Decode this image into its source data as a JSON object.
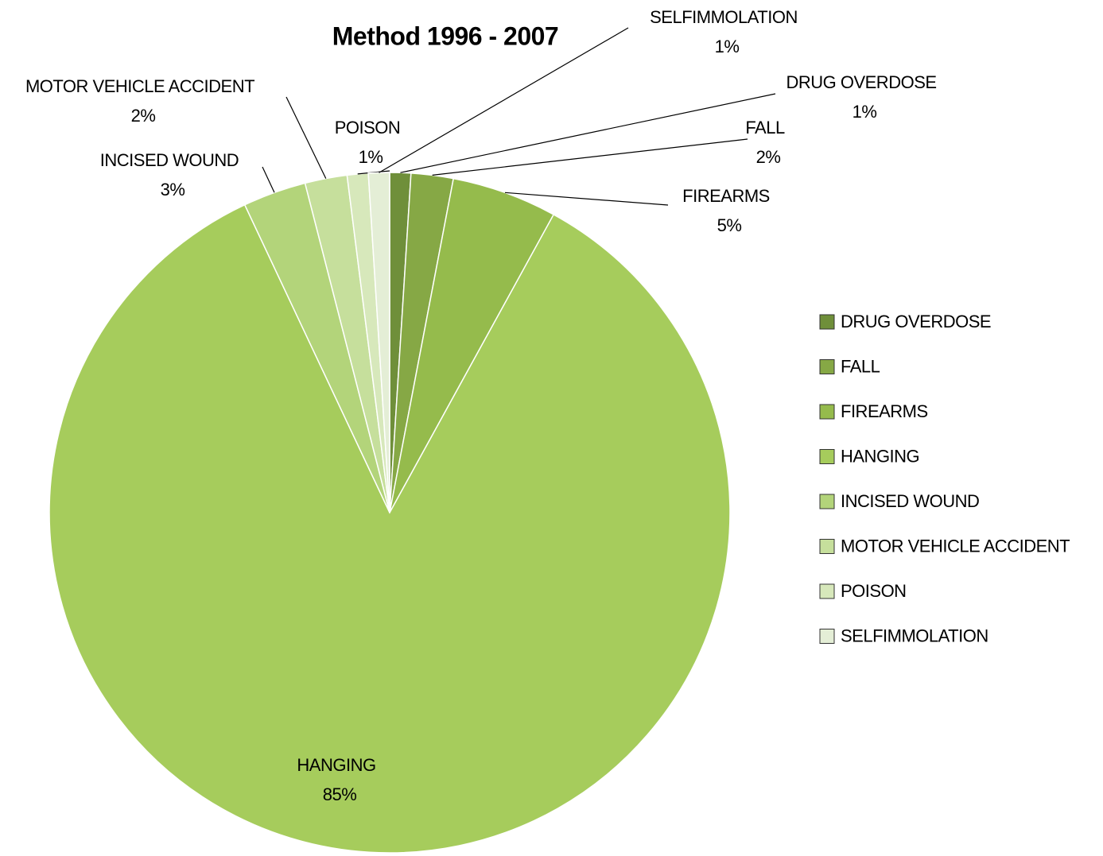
{
  "chart_data": {
    "type": "pie",
    "title": "Method 1996  - 2007",
    "categories": [
      "DRUG OVERDOSE",
      "FALL",
      "FIREARMS",
      "HANGING",
      "INCISED WOUND",
      "MOTOR VEHICLE ACCIDENT",
      "POISON",
      "SELFIMMOLATION"
    ],
    "values": [
      1,
      2,
      5,
      85,
      3,
      2,
      1,
      1
    ],
    "value_labels": [
      "1%",
      "2%",
      "5%",
      "85%",
      "3%",
      "2%",
      "1%",
      "1%"
    ],
    "colors": [
      "#6f8f3a",
      "#86a845",
      "#95bb4c",
      "#a6cc5c",
      "#b3d47a",
      "#c6df9c",
      "#d7e8bb",
      "#e4eed6"
    ],
    "legend": "right"
  }
}
